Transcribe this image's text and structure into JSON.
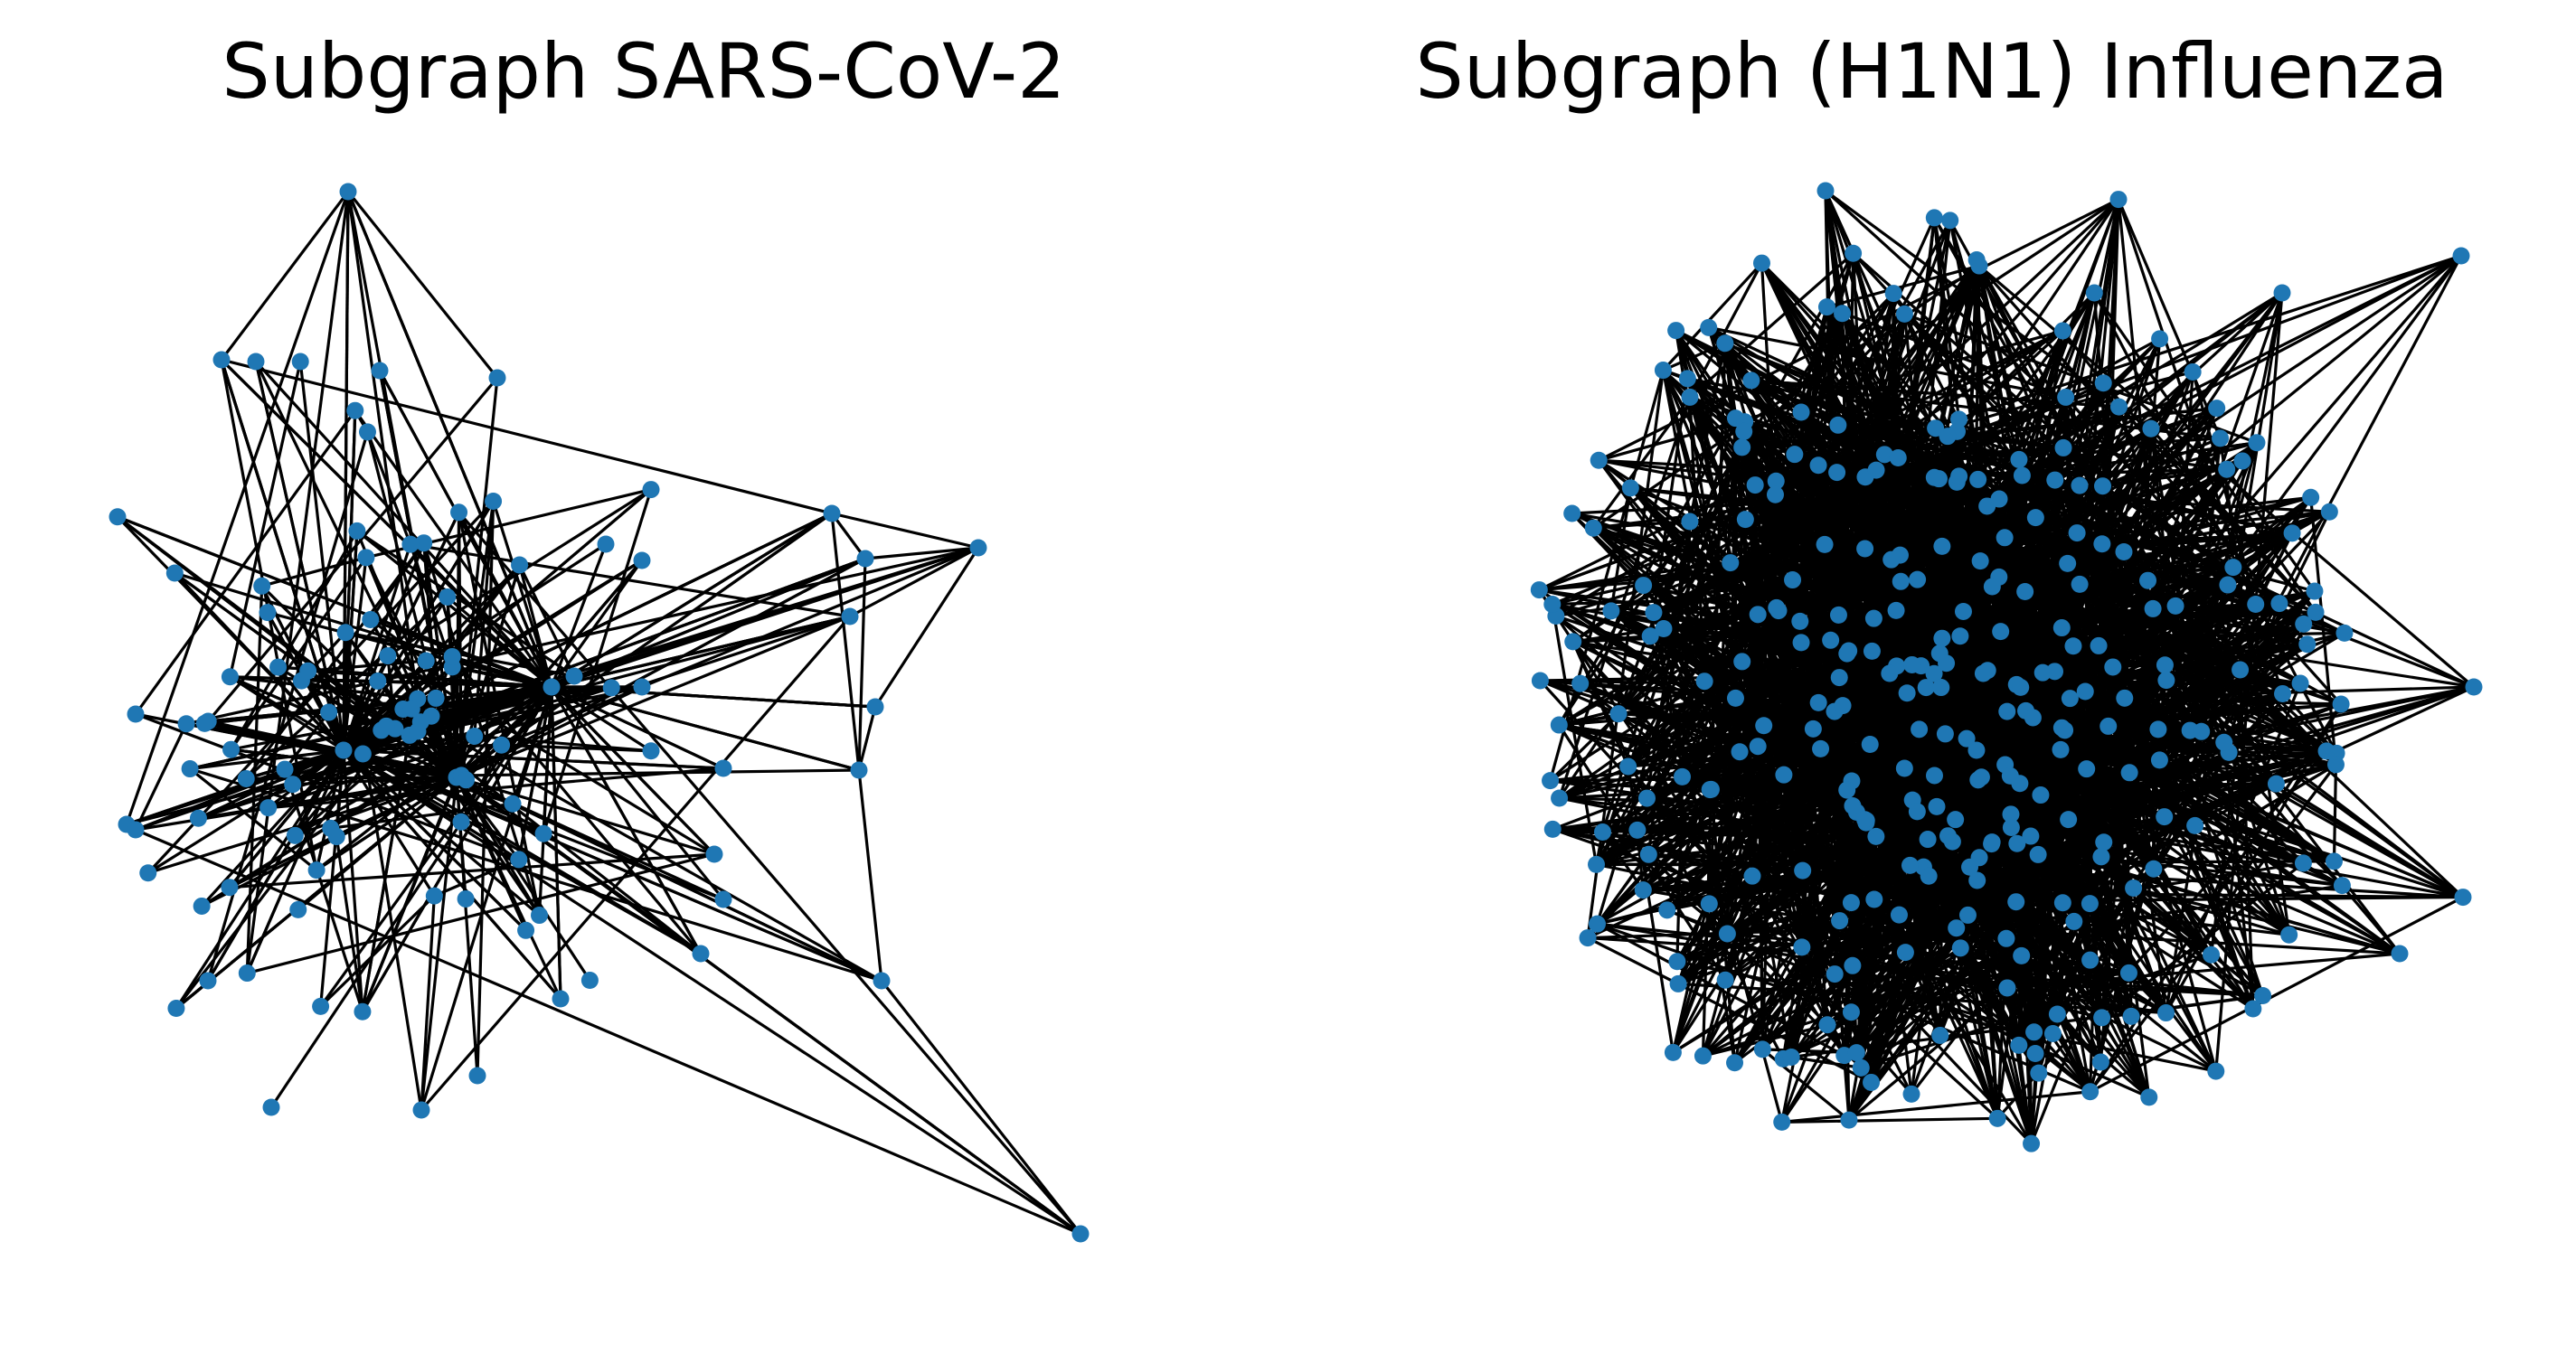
{
  "figure": {
    "panels": [
      {
        "title": "Subgraph SARS-CoV-2",
        "node_color": "#1f77b4",
        "edge_color": "#000000"
      },
      {
        "title": "Subgraph (H1N1) Influenza",
        "node_color": "#1f77b4",
        "edge_color": "#000000"
      }
    ]
  }
}
